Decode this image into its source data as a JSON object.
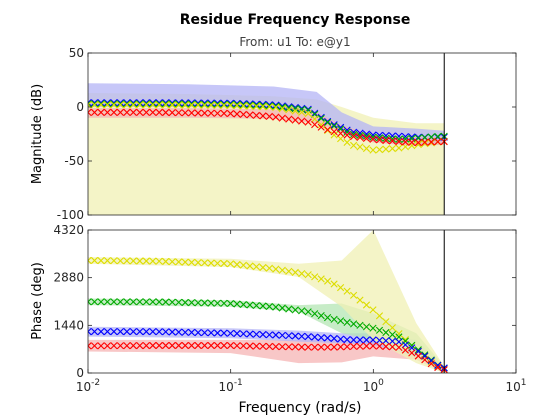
{
  "chart_data": {
    "type": "scatter",
    "title": "Residue Frequency Response",
    "subtitle": "From: u1  To: e@y1",
    "xlabel": "Frequency  (rad/s)",
    "x_scale": "log",
    "xlim": [
      0.01,
      10
    ],
    "x_ticks": [
      {
        "value": 0.01,
        "base": "10",
        "exp": "-2"
      },
      {
        "value": 0.1,
        "base": "10",
        "exp": "-1"
      },
      {
        "value": 1,
        "base": "10",
        "exp": "0"
      },
      {
        "value": 10,
        "base": "10",
        "exp": "1"
      }
    ],
    "nyquist_frequency": 3.14,
    "marker": "x",
    "panels": [
      {
        "name": "magnitude",
        "ylabel": "Magnitude (dB)",
        "ylim": [
          -100,
          50
        ],
        "yticks": [
          -100,
          -50,
          0,
          50
        ],
        "series": [
          {
            "color": "#0000ff",
            "marker": "x",
            "x": [
              0.01,
              0.03,
              0.1,
              0.2,
              0.35,
              0.5,
              0.7,
              1.0,
              1.5,
              2.0,
              3.0
            ],
            "y": [
              4,
              4,
              3.5,
              2,
              -2,
              -15,
              -23,
              -26,
              -27,
              -28,
              -28
            ]
          },
          {
            "color": "#00aa00",
            "marker": "x",
            "x": [
              0.01,
              0.03,
              0.1,
              0.2,
              0.35,
              0.5,
              0.7,
              1.0,
              1.5,
              2.0,
              3.0
            ],
            "y": [
              3,
              3,
              2.5,
              1,
              -3,
              -16,
              -25,
              -28,
              -30,
              -29,
              -27
            ]
          },
          {
            "color": "#dddd00",
            "marker": "x",
            "x": [
              0.01,
              0.03,
              0.1,
              0.2,
              0.35,
              0.5,
              0.7,
              1.0,
              1.5,
              2.0,
              3.0
            ],
            "y": [
              2,
              2,
              1.5,
              0,
              -6,
              -24,
              -35,
              -40,
              -38,
              -35,
              -32
            ]
          },
          {
            "color": "#ff0000",
            "marker": "x",
            "x": [
              0.01,
              0.03,
              0.1,
              0.2,
              0.35,
              0.5,
              0.7,
              1.0,
              1.5,
              2.0,
              3.0
            ],
            "y": [
              -5,
              -5,
              -6,
              -9,
              -14,
              -22,
              -27,
              -30,
              -32,
              -33,
              -32
            ]
          }
        ],
        "bands": [
          {
            "color": "#f0f0b4",
            "x": [
              0.01,
              0.05,
              0.2,
              0.4,
              0.6,
              1.0,
              2.0,
              3.14
            ],
            "low": [
              -100,
              -100,
              -100,
              -100,
              -100,
              -100,
              -100,
              -100
            ],
            "high": [
              13,
              12,
              10,
              7,
              0,
              -10,
              -15,
              -15
            ]
          },
          {
            "color": "#b4b4f5",
            "x": [
              0.01,
              0.05,
              0.2,
              0.4,
              0.6,
              1.0,
              2.0,
              3.14
            ],
            "low": [
              0,
              0,
              -1,
              -6,
              -20,
              -32,
              -36,
              -34
            ],
            "high": [
              22,
              21,
              19,
              14,
              -5,
              -18,
              -20,
              -22
            ]
          },
          {
            "color": "#f5b4b4",
            "x": [
              0.01,
              0.05,
              0.2,
              0.4,
              0.6,
              1.0,
              2.0,
              3.14
            ],
            "low": [
              -10,
              -10,
              -11,
              -15,
              -24,
              -33,
              -36,
              -35
            ],
            "high": [
              -1,
              -1,
              -2,
              -5,
              -17,
              -26,
              -28,
              -28
            ]
          }
        ]
      },
      {
        "name": "phase",
        "ylabel": "Phase (deg)",
        "ylim": [
          0,
          4320
        ],
        "yticks": [
          0,
          1440,
          2880,
          4320
        ],
        "series": [
          {
            "color": "#dddd00",
            "marker": "x",
            "x": [
              0.01,
              0.03,
              0.1,
              0.2,
              0.35,
              0.5,
              0.7,
              1.0,
              1.5,
              2.0,
              3.0
            ],
            "y": [
              3400,
              3380,
              3300,
              3150,
              2970,
              2750,
              2400,
              1900,
              1200,
              700,
              100
            ]
          },
          {
            "color": "#00aa00",
            "marker": "x",
            "x": [
              0.01,
              0.03,
              0.1,
              0.2,
              0.35,
              0.5,
              0.7,
              1.0,
              1.5,
              2.0,
              3.0
            ],
            "y": [
              2150,
              2150,
              2100,
              2000,
              1850,
              1650,
              1500,
              1350,
              1100,
              750,
              150
            ]
          },
          {
            "color": "#0000ff",
            "marker": "x",
            "x": [
              0.01,
              0.03,
              0.1,
              0.2,
              0.35,
              0.5,
              0.7,
              1.0,
              1.5,
              2.0,
              3.0
            ],
            "y": [
              1250,
              1250,
              1200,
              1150,
              1100,
              1050,
              1000,
              1000,
              950,
              700,
              150
            ]
          },
          {
            "color": "#ff0000",
            "marker": "x",
            "x": [
              0.01,
              0.03,
              0.1,
              0.2,
              0.35,
              0.5,
              0.7,
              1.0,
              1.5,
              2.0,
              3.0
            ],
            "y": [
              820,
              830,
              830,
              800,
              780,
              780,
              800,
              820,
              780,
              550,
              100
            ]
          }
        ],
        "bands": [
          {
            "color": "#f5b4b4",
            "x": [
              0.01,
              0.1,
              0.3,
              0.6,
              1.0,
              2.0,
              3.14
            ],
            "low": [
              650,
              600,
              300,
              320,
              500,
              400,
              0
            ],
            "high": [
              1000,
              1000,
              1000,
              1000,
              1000,
              800,
              200
            ]
          },
          {
            "color": "#b4b4f5",
            "x": [
              0.01,
              0.1,
              0.3,
              0.6,
              1.0,
              2.0,
              3.14
            ],
            "low": [
              1100,
              1050,
              950,
              900,
              850,
              500,
              0
            ],
            "high": [
              1400,
              1350,
              1280,
              1200,
              1200,
              1000,
              200
            ]
          },
          {
            "color": "#b4e6b4",
            "x": [
              0.01,
              0.1,
              0.3,
              0.6,
              1.0,
              2.0,
              3.14
            ],
            "low": [
              2050,
              2000,
              1850,
              1200,
              1000,
              600,
              0
            ],
            "high": [
              2250,
              2200,
              2050,
              2100,
              1800,
              1200,
              200
            ]
          },
          {
            "color": "#f0f0b4",
            "x": [
              0.01,
              0.1,
              0.3,
              0.6,
              1.0,
              2.0,
              3.14
            ],
            "low": [
              3300,
              3200,
              2900,
              2000,
              1000,
              300,
              0
            ],
            "high": [
              3500,
              3450,
              3300,
              3400,
              4320,
              1500,
              200
            ]
          }
        ]
      }
    ]
  }
}
